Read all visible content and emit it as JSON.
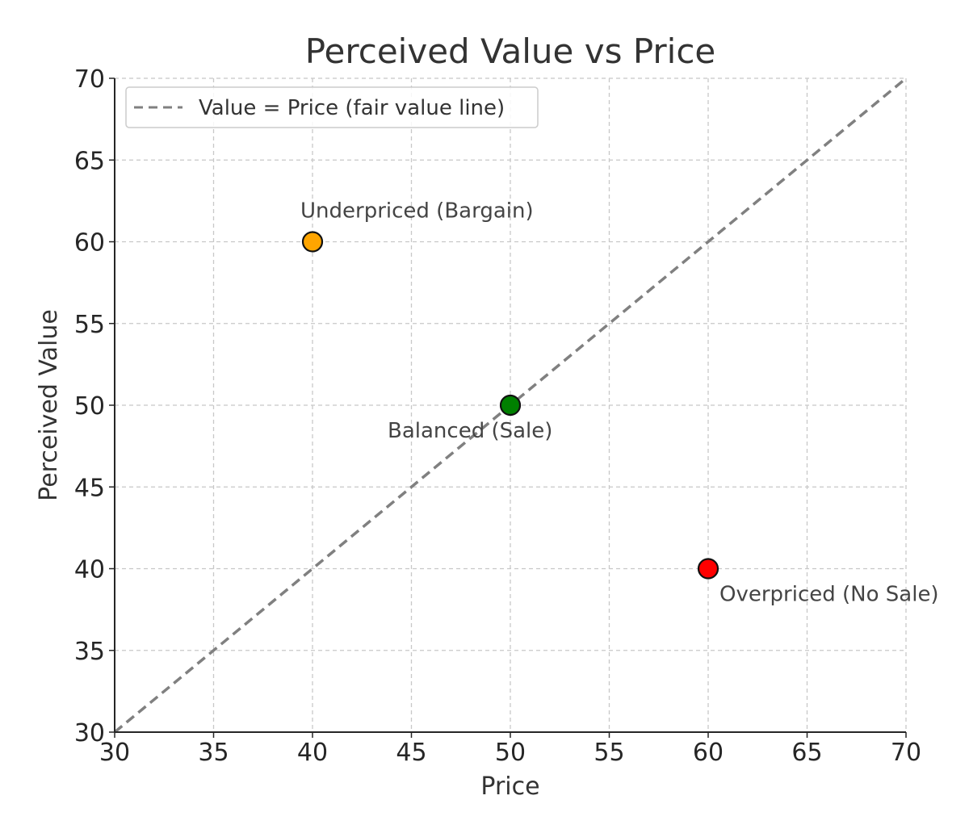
{
  "chart_data": {
    "type": "scatter",
    "title": "Perceived Value vs Price",
    "xlabel": "Price",
    "ylabel": "Perceived Value",
    "xlim": [
      30,
      70
    ],
    "ylim": [
      30,
      70
    ],
    "x_ticks": [
      30,
      35,
      40,
      45,
      50,
      55,
      60,
      65,
      70
    ],
    "y_ticks": [
      30,
      35,
      40,
      45,
      50,
      55,
      60,
      65,
      70
    ],
    "grid": true,
    "grid_style": "dashed",
    "legend_position": "top-left",
    "reference_line": {
      "name": "Value = Price (fair value line)",
      "x": [
        30,
        70
      ],
      "y": [
        30,
        70
      ],
      "color": "#808080",
      "style": "dashed"
    },
    "points": [
      {
        "x": 40,
        "y": 60,
        "label": "Underpriced (Bargain)",
        "color": "#FFA500"
      },
      {
        "x": 50,
        "y": 50,
        "label": "Balanced (Sale)",
        "color": "#008000"
      },
      {
        "x": 60,
        "y": 40,
        "label": "Overpriced (No Sale)",
        "color": "#FF0000"
      }
    ]
  }
}
